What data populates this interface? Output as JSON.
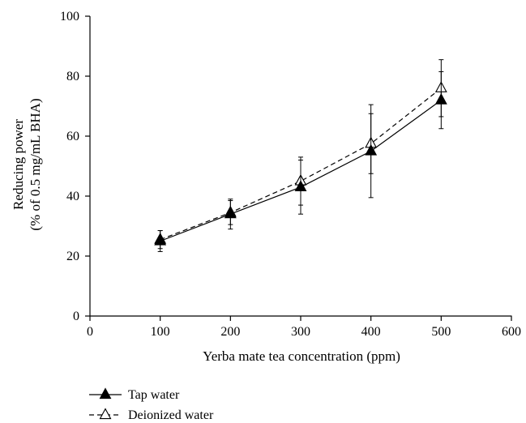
{
  "chart_data": {
    "type": "line",
    "title": "",
    "xlabel": "Yerba mate tea concentration (ppm)",
    "ylabel_lines": [
      "Reducing power",
      "(% of 0.5 mg/mL BHA)"
    ],
    "xlim": [
      0,
      600
    ],
    "ylim": [
      0,
      100
    ],
    "xticks": [
      0,
      100,
      200,
      300,
      400,
      500,
      600
    ],
    "yticks": [
      0,
      20,
      40,
      60,
      80,
      100
    ],
    "grid": false,
    "legend_position": "bottom-left",
    "x": [
      100,
      200,
      300,
      400,
      500
    ],
    "series": [
      {
        "name": "Tap water",
        "values": [
          25.0,
          34.0,
          43.0,
          55.0,
          72.0
        ],
        "error": [
          3.5,
          5.0,
          9.0,
          15.5,
          9.5
        ],
        "line_style": "solid",
        "marker": "filled-triangle",
        "color": "#000000"
      },
      {
        "name": "Deionized water",
        "values": [
          25.5,
          34.5,
          45.0,
          57.5,
          76.0
        ],
        "error": [
          3.0,
          4.0,
          8.0,
          10.0,
          9.5
        ],
        "line_style": "dashed",
        "marker": "open-triangle",
        "color": "#000000"
      }
    ]
  }
}
